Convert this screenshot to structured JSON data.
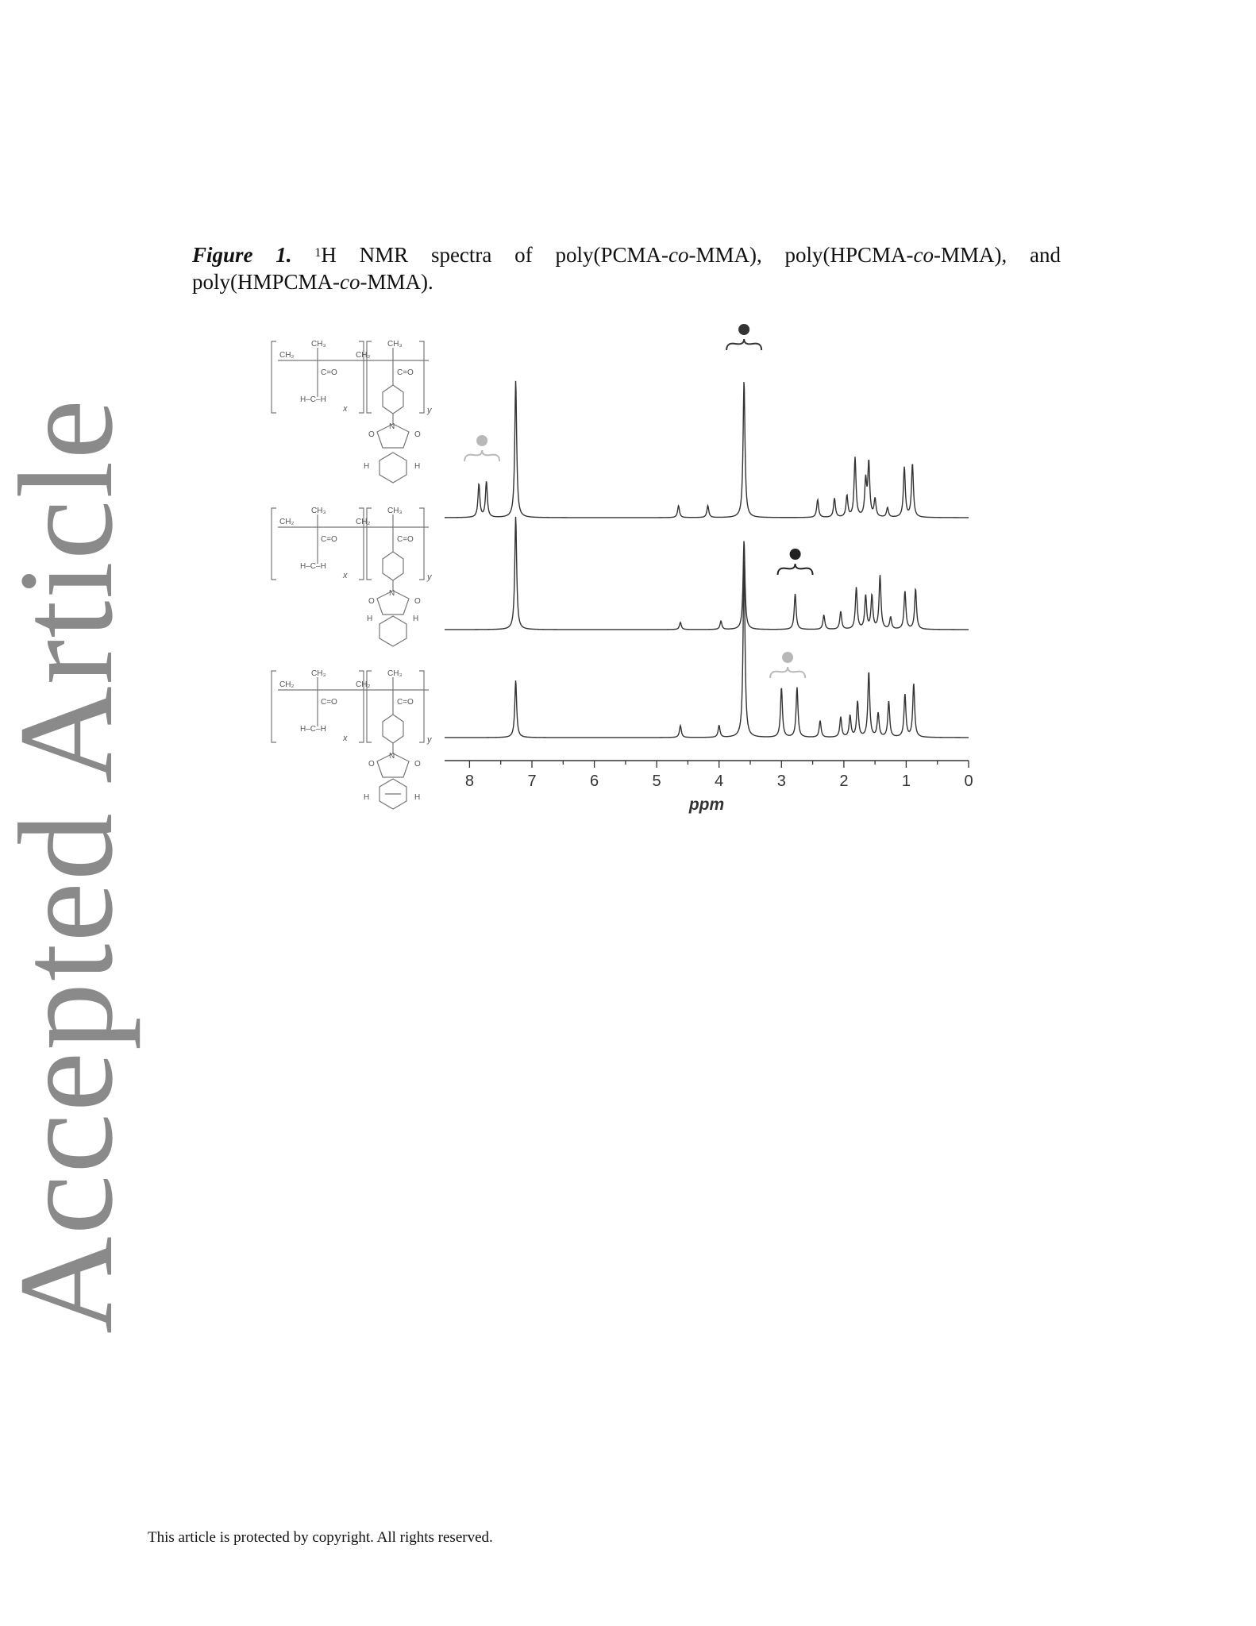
{
  "watermark": "Accepted Article",
  "caption": {
    "label": "Figure 1.",
    "sup": "1",
    "text_parts": [
      "H NMR spectra of poly(PCMA-",
      "co",
      "-MMA), poly(HPCMA-",
      "co",
      "-MMA), and poly(HMPCMA-",
      "co",
      "-MMA)."
    ]
  },
  "footer": "This article is protected by copyright. All rights reserved.",
  "chart_data": {
    "type": "line",
    "title": "",
    "xlabel": "ppm",
    "ylabel": "",
    "xlim": [
      8.4,
      0
    ],
    "x_ticks": [
      8,
      7,
      6,
      5,
      4,
      3,
      2,
      1,
      0
    ],
    "x_tick_labels": [
      "8",
      "7",
      "6",
      "5",
      "4",
      "3",
      "2",
      "1",
      "0"
    ],
    "series": [
      {
        "peaks": [
          {
            "ppm": 7.85,
            "h": 0.28
          },
          {
            "ppm": 7.73,
            "h": 0.3
          },
          {
            "ppm": 7.26,
            "h": 1.15
          },
          {
            "ppm": 4.65,
            "h": 0.1
          },
          {
            "ppm": 4.18,
            "h": 0.1
          },
          {
            "ppm": 3.6,
            "h": 1.15
          },
          {
            "ppm": 2.42,
            "h": 0.15
          },
          {
            "ppm": 2.15,
            "h": 0.16
          },
          {
            "ppm": 1.95,
            "h": 0.18
          },
          {
            "ppm": 1.82,
            "h": 0.5
          },
          {
            "ppm": 1.65,
            "h": 0.3
          },
          {
            "ppm": 1.6,
            "h": 0.45
          },
          {
            "ppm": 1.5,
            "h": 0.15
          },
          {
            "ppm": 1.3,
            "h": 0.08
          },
          {
            "ppm": 1.03,
            "h": 0.42
          },
          {
            "ppm": 0.9,
            "h": 0.45
          }
        ],
        "markers": [
          {
            "ppm": 7.8,
            "color": "#b8b8b8"
          },
          {
            "ppm": 3.6,
            "color": "#333333"
          }
        ]
      },
      {
        "peaks": [
          {
            "ppm": 7.26,
            "h": 0.95
          },
          {
            "ppm": 4.62,
            "h": 0.06
          },
          {
            "ppm": 3.97,
            "h": 0.07
          },
          {
            "ppm": 3.6,
            "h": 0.75
          },
          {
            "ppm": 2.78,
            "h": 0.3
          },
          {
            "ppm": 2.32,
            "h": 0.12
          },
          {
            "ppm": 2.05,
            "h": 0.15
          },
          {
            "ppm": 1.8,
            "h": 0.35
          },
          {
            "ppm": 1.65,
            "h": 0.28
          },
          {
            "ppm": 1.55,
            "h": 0.28
          },
          {
            "ppm": 1.42,
            "h": 0.45
          },
          {
            "ppm": 1.25,
            "h": 0.1
          },
          {
            "ppm": 1.02,
            "h": 0.32
          },
          {
            "ppm": 0.85,
            "h": 0.34
          }
        ],
        "markers": [
          {
            "ppm": 2.78,
            "color": "#222222"
          }
        ]
      },
      {
        "peaks": [
          {
            "ppm": 7.26,
            "h": 0.48
          },
          {
            "ppm": 4.62,
            "h": 0.1
          },
          {
            "ppm": 4.0,
            "h": 0.1
          },
          {
            "ppm": 3.6,
            "h": 1.5
          },
          {
            "ppm": 3.0,
            "h": 0.42
          },
          {
            "ppm": 2.75,
            "h": 0.42
          },
          {
            "ppm": 2.38,
            "h": 0.14
          },
          {
            "ppm": 2.05,
            "h": 0.17
          },
          {
            "ppm": 1.9,
            "h": 0.18
          },
          {
            "ppm": 1.78,
            "h": 0.3
          },
          {
            "ppm": 1.6,
            "h": 0.55
          },
          {
            "ppm": 1.45,
            "h": 0.2
          },
          {
            "ppm": 1.28,
            "h": 0.3
          },
          {
            "ppm": 1.02,
            "h": 0.36
          },
          {
            "ppm": 0.88,
            "h": 0.45
          }
        ],
        "markers": [
          {
            "ppm": 2.9,
            "color": "#b8b8b8"
          }
        ]
      }
    ]
  }
}
